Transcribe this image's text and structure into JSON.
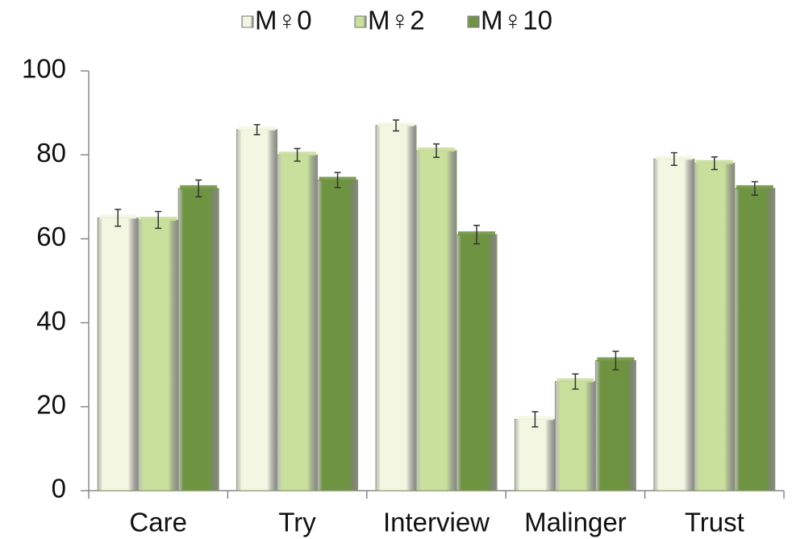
{
  "chart_data": {
    "type": "bar",
    "categories": [
      "Care",
      "Try",
      "Interview",
      "Malinger",
      "Trust"
    ],
    "series": [
      {
        "name": "M♀0",
        "color": "#f3f7e2",
        "values": [
          65,
          86,
          87,
          17,
          79
        ],
        "errors": [
          2,
          1.2,
          1.3,
          1.8,
          1.5
        ]
      },
      {
        "name": "M♀2",
        "color": "#c9df9c",
        "values": [
          64.5,
          80,
          81,
          26,
          78
        ],
        "errors": [
          2,
          1.5,
          1.6,
          1.8,
          1.5
        ]
      },
      {
        "name": "M♀10",
        "color": "#6f9441",
        "values": [
          72,
          74,
          61,
          31,
          72
        ],
        "errors": [
          2,
          1.8,
          2.2,
          2.2,
          1.6
        ]
      }
    ],
    "ylim": [
      0,
      100
    ],
    "yticks": [
      0,
      20,
      40,
      60,
      80,
      100
    ],
    "legend": "top"
  }
}
